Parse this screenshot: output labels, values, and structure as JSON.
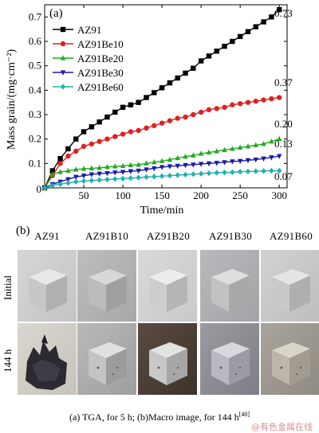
{
  "panel_a_label": "(a)",
  "chart_data": {
    "type": "line",
    "xlabel": "Time/min",
    "ylabel": "Mass grain/(mg·cm⁻²)",
    "xlim": [
      0,
      310
    ],
    "ylim": [
      0,
      0.75
    ],
    "xticks": [
      0,
      50,
      100,
      150,
      200,
      250,
      300
    ],
    "yticks": [
      0.1,
      0.2,
      0.3,
      0.4,
      0.5,
      0.6,
      0.7
    ],
    "tick_labels_x": [
      "0",
      "50",
      "100",
      "150",
      "200",
      "250",
      "300"
    ],
    "tick_labels_y": [
      "0.1",
      "0.2",
      "0.3",
      "0.4",
      "0.5",
      "0.6",
      "0.7"
    ],
    "origin_label": "0",
    "legend_position": "top-left",
    "series": [
      {
        "name": "AZ91",
        "color": "#000000",
        "marker": "square",
        "x": [
          0,
          10,
          20,
          30,
          40,
          50,
          60,
          70,
          80,
          90,
          100,
          110,
          120,
          130,
          140,
          150,
          160,
          170,
          180,
          190,
          200,
          210,
          220,
          230,
          240,
          250,
          260,
          270,
          280,
          290,
          300
        ],
        "y": [
          0,
          0.07,
          0.12,
          0.16,
          0.2,
          0.23,
          0.25,
          0.27,
          0.29,
          0.31,
          0.33,
          0.34,
          0.35,
          0.37,
          0.39,
          0.41,
          0.43,
          0.45,
          0.47,
          0.49,
          0.52,
          0.54,
          0.56,
          0.58,
          0.6,
          0.62,
          0.64,
          0.66,
          0.68,
          0.7,
          0.73
        ],
        "end_label": "0.73"
      },
      {
        "name": "AZ91Be10",
        "color": "#e02020",
        "marker": "circle",
        "x": [
          0,
          10,
          20,
          30,
          40,
          50,
          60,
          70,
          80,
          90,
          100,
          110,
          120,
          130,
          140,
          150,
          160,
          170,
          180,
          190,
          200,
          210,
          220,
          230,
          240,
          250,
          260,
          270,
          280,
          290,
          300
        ],
        "y": [
          0,
          0.05,
          0.1,
          0.13,
          0.15,
          0.17,
          0.18,
          0.19,
          0.2,
          0.21,
          0.22,
          0.23,
          0.235,
          0.245,
          0.255,
          0.265,
          0.275,
          0.285,
          0.29,
          0.3,
          0.31,
          0.32,
          0.325,
          0.33,
          0.34,
          0.345,
          0.35,
          0.355,
          0.36,
          0.365,
          0.37
        ],
        "end_label": "0.37"
      },
      {
        "name": "AZ91Be20",
        "color": "#22aa22",
        "marker": "triangle-up",
        "x": [
          0,
          10,
          20,
          30,
          40,
          50,
          60,
          70,
          80,
          90,
          100,
          110,
          120,
          130,
          140,
          150,
          160,
          170,
          180,
          190,
          200,
          210,
          220,
          230,
          240,
          250,
          260,
          270,
          280,
          290,
          300
        ],
        "y": [
          0,
          0.055,
          0.065,
          0.07,
          0.075,
          0.078,
          0.08,
          0.082,
          0.085,
          0.088,
          0.09,
          0.093,
          0.095,
          0.1,
          0.105,
          0.11,
          0.115,
          0.122,
          0.128,
          0.133,
          0.14,
          0.145,
          0.15,
          0.155,
          0.16,
          0.165,
          0.17,
          0.175,
          0.18,
          0.19,
          0.2
        ],
        "end_label": "0.20"
      },
      {
        "name": "AZ91Be30",
        "color": "#1a1aaa",
        "marker": "triangle-down",
        "x": [
          0,
          10,
          20,
          30,
          40,
          50,
          60,
          70,
          80,
          90,
          100,
          110,
          120,
          130,
          140,
          150,
          160,
          170,
          180,
          190,
          200,
          210,
          220,
          230,
          240,
          250,
          260,
          270,
          280,
          290,
          300
        ],
        "y": [
          0,
          0.015,
          0.025,
          0.035,
          0.045,
          0.05,
          0.055,
          0.058,
          0.06,
          0.063,
          0.065,
          0.068,
          0.07,
          0.075,
          0.08,
          0.085,
          0.088,
          0.09,
          0.093,
          0.095,
          0.098,
          0.1,
          0.102,
          0.105,
          0.108,
          0.11,
          0.113,
          0.116,
          0.12,
          0.125,
          0.13
        ],
        "end_label": "0.13"
      },
      {
        "name": "AZ91Be60",
        "color": "#20b0b0",
        "marker": "diamond",
        "x": [
          0,
          10,
          20,
          30,
          40,
          50,
          60,
          70,
          80,
          90,
          100,
          110,
          120,
          130,
          140,
          150,
          160,
          170,
          180,
          190,
          200,
          210,
          220,
          230,
          240,
          250,
          260,
          270,
          280,
          290,
          300
        ],
        "y": [
          0,
          0.01,
          0.015,
          0.02,
          0.025,
          0.028,
          0.03,
          0.032,
          0.034,
          0.036,
          0.038,
          0.04,
          0.042,
          0.044,
          0.046,
          0.048,
          0.05,
          0.052,
          0.054,
          0.056,
          0.058,
          0.06,
          0.062,
          0.063,
          0.064,
          0.066,
          0.067,
          0.068,
          0.069,
          0.07,
          0.07
        ],
        "end_label": "0.07"
      }
    ]
  },
  "panel_b": {
    "label": "(b)",
    "columns": [
      "AZ91",
      "AZ91B10",
      "AZ91B20",
      "AZ91B30",
      "AZ91B60"
    ],
    "rows": [
      "Initial",
      "144 h"
    ]
  },
  "caption": {
    "text": "(a) TGA, for 5 h; (b)Macro image, for 144 h",
    "ref": "[40]"
  },
  "watermark": "@有色金属在线"
}
